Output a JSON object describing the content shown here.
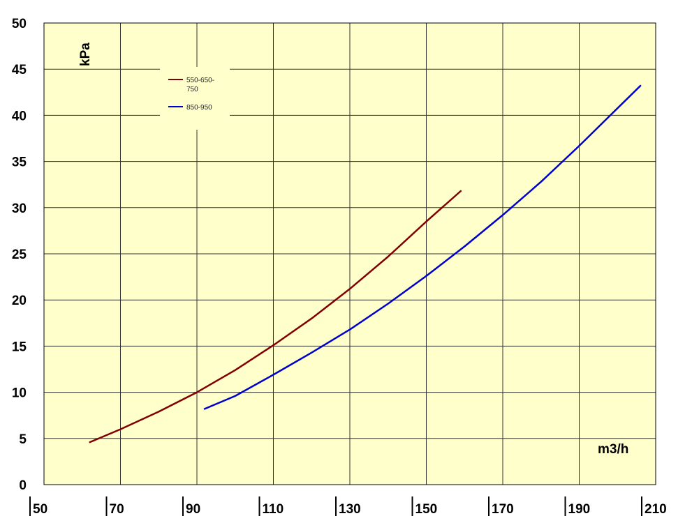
{
  "chart_data": {
    "type": "line",
    "ylabel": "kPa",
    "xlabel": "m3/h",
    "xlim": [
      50,
      210
    ],
    "ylim": [
      0,
      50
    ],
    "x_ticks": [
      50,
      70,
      90,
      110,
      130,
      150,
      170,
      190,
      210
    ],
    "y_ticks": [
      0,
      5,
      10,
      15,
      20,
      25,
      30,
      35,
      40,
      45,
      50
    ],
    "grid": true,
    "legend_position": "top-left",
    "plot_background": "#ffffcc",
    "series": [
      {
        "name": "550-650-750",
        "color": "#800000",
        "x": [
          62,
          70,
          80,
          90,
          100,
          110,
          120,
          130,
          140,
          150,
          159
        ],
        "y": [
          4.6,
          6.0,
          7.9,
          10.0,
          12.4,
          15.1,
          18.0,
          21.2,
          24.7,
          28.5,
          31.8
        ]
      },
      {
        "name": "850-950",
        "color": "#0000cc",
        "x": [
          92,
          100,
          110,
          120,
          130,
          140,
          150,
          160,
          170,
          180,
          190,
          206
        ],
        "y": [
          8.2,
          9.6,
          11.9,
          14.3,
          16.8,
          19.6,
          22.6,
          25.8,
          29.2,
          32.8,
          36.7,
          43.2
        ]
      }
    ]
  }
}
